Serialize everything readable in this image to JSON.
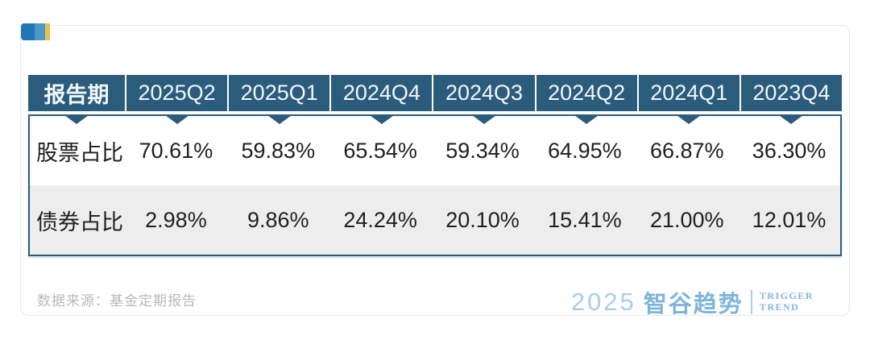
{
  "table": {
    "header": [
      "报告期",
      "2025Q2",
      "2025Q1",
      "2024Q4",
      "2024Q3",
      "2024Q2",
      "2024Q1",
      "2023Q4"
    ],
    "rows": [
      {
        "label": "股票占比",
        "values": [
          "70.61%",
          "59.83%",
          "65.54%",
          "59.34%",
          "64.95%",
          "66.87%",
          "36.30%"
        ]
      },
      {
        "label": "债券占比",
        "values": [
          "2.98%",
          "9.86%",
          "24.24%",
          "20.10%",
          "15.41%",
          "21.00%",
          "12.01%"
        ]
      }
    ]
  },
  "footer": {
    "source": "数据来源：基金定期报告"
  },
  "brand": {
    "logo_year": "2025",
    "logo_name": "智谷趋势",
    "logo_sub_line1": "TRIGGER",
    "logo_sub_line2": "TREND"
  },
  "colors": {
    "header_bg": "#2b5c7c",
    "header_text": "#f2f7fa",
    "body_border": "#2b5c7c",
    "row_alt_bg": "#ededed",
    "body_text": "#1f1f1f",
    "source_text": "#b9b9b9",
    "logo_blue": "#7db6dc",
    "logo_light_blue": "#a9cde8",
    "deco_dark_blue": "#2277b4",
    "deco_light_blue": "#4e97cd",
    "deco_yellow": "#e2c14e",
    "card_border": "#e9e9e9"
  },
  "chart_data": {
    "type": "table",
    "title": "",
    "columns": [
      "报告期",
      "2025Q2",
      "2025Q1",
      "2024Q4",
      "2024Q3",
      "2024Q2",
      "2024Q1",
      "2023Q4"
    ],
    "rows": [
      {
        "name": "股票占比",
        "values_pct": [
          70.61,
          59.83,
          65.54,
          59.34,
          64.95,
          66.87,
          36.3
        ]
      },
      {
        "name": "债券占比",
        "values_pct": [
          2.98,
          9.86,
          24.24,
          20.1,
          15.41,
          21.0,
          12.01
        ]
      }
    ],
    "source_note": "数据来源：基金定期报告",
    "layout": {
      "first_column_is_row_labels": true,
      "alternating_row_shading": true
    }
  }
}
